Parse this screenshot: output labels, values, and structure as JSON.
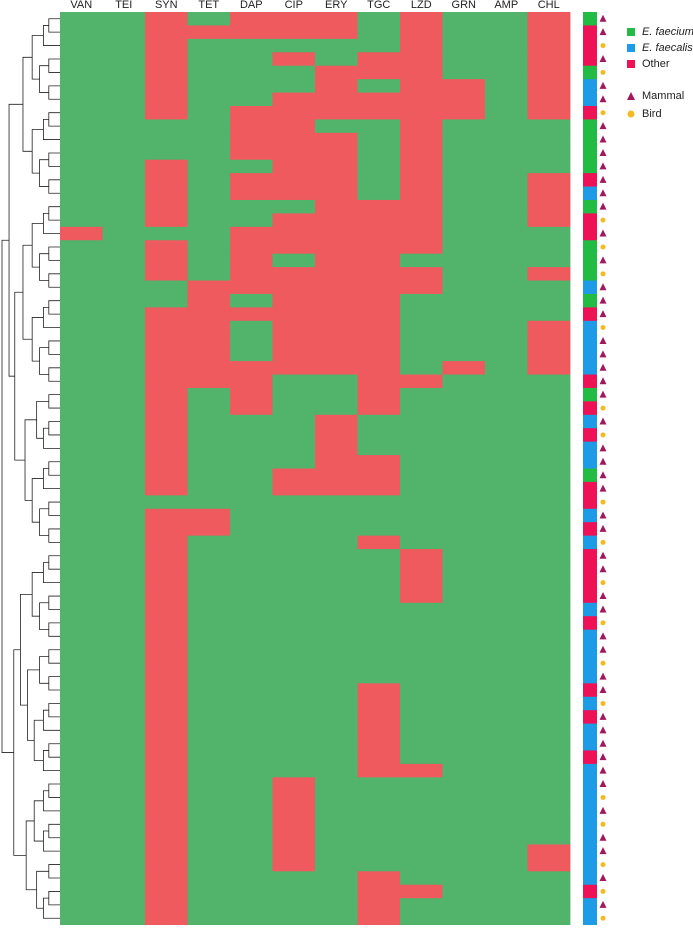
{
  "chart_data": {
    "type": "heatmap",
    "columns": [
      "VAN",
      "TEI",
      "SYN",
      "TET",
      "DAP",
      "CIP",
      "ERY",
      "TGC",
      "LZD",
      "GRN",
      "AMP",
      "CHL"
    ],
    "cell_colors": [
      "#52b36a",
      "#ef5a5f"
    ],
    "matrix": [
      [
        0,
        0,
        1,
        0,
        1,
        1,
        1,
        0,
        1,
        0,
        0,
        1
      ],
      [
        0,
        0,
        1,
        1,
        1,
        1,
        1,
        0,
        1,
        0,
        0,
        1
      ],
      [
        0,
        0,
        1,
        0,
        0,
        0,
        0,
        0,
        1,
        0,
        0,
        1
      ],
      [
        0,
        0,
        1,
        0,
        0,
        1,
        0,
        1,
        1,
        0,
        0,
        1
      ],
      [
        0,
        0,
        1,
        0,
        0,
        0,
        1,
        1,
        1,
        0,
        0,
        1
      ],
      [
        0,
        0,
        1,
        0,
        0,
        0,
        1,
        0,
        1,
        1,
        0,
        1
      ],
      [
        0,
        0,
        1,
        0,
        0,
        1,
        1,
        1,
        1,
        1,
        0,
        1
      ],
      [
        0,
        0,
        1,
        0,
        1,
        1,
        1,
        1,
        1,
        1,
        0,
        1
      ],
      [
        0,
        0,
        0,
        0,
        1,
        1,
        0,
        0,
        1,
        0,
        0,
        0
      ],
      [
        0,
        0,
        0,
        0,
        1,
        1,
        1,
        0,
        1,
        0,
        0,
        0
      ],
      [
        0,
        0,
        0,
        0,
        1,
        1,
        1,
        0,
        1,
        0,
        0,
        0
      ],
      [
        0,
        0,
        1,
        0,
        0,
        1,
        1,
        0,
        1,
        0,
        0,
        0
      ],
      [
        0,
        0,
        1,
        0,
        1,
        1,
        1,
        0,
        1,
        0,
        0,
        1
      ],
      [
        0,
        0,
        1,
        0,
        1,
        1,
        1,
        0,
        1,
        0,
        0,
        1
      ],
      [
        0,
        0,
        1,
        0,
        0,
        0,
        1,
        1,
        1,
        0,
        0,
        1
      ],
      [
        0,
        0,
        1,
        0,
        0,
        1,
        1,
        1,
        1,
        0,
        0,
        1
      ],
      [
        1,
        0,
        0,
        0,
        1,
        1,
        1,
        1,
        1,
        0,
        0,
        0
      ],
      [
        0,
        0,
        1,
        0,
        1,
        1,
        1,
        1,
        1,
        0,
        0,
        0
      ],
      [
        0,
        0,
        1,
        0,
        1,
        0,
        1,
        1,
        0,
        0,
        0,
        0
      ],
      [
        0,
        0,
        1,
        0,
        1,
        1,
        1,
        1,
        1,
        0,
        0,
        1
      ],
      [
        0,
        0,
        0,
        1,
        1,
        1,
        1,
        1,
        1,
        0,
        0,
        0
      ],
      [
        0,
        0,
        0,
        1,
        0,
        1,
        1,
        1,
        0,
        0,
        0,
        0
      ],
      [
        0,
        0,
        1,
        1,
        1,
        1,
        1,
        1,
        0,
        0,
        0,
        0
      ],
      [
        0,
        0,
        1,
        1,
        0,
        1,
        1,
        1,
        0,
        0,
        0,
        1
      ],
      [
        0,
        0,
        1,
        1,
        0,
        1,
        1,
        1,
        0,
        0,
        0,
        1
      ],
      [
        0,
        0,
        1,
        1,
        0,
        1,
        1,
        1,
        0,
        0,
        0,
        1
      ],
      [
        0,
        0,
        1,
        1,
        1,
        1,
        1,
        1,
        0,
        1,
        0,
        1
      ],
      [
        0,
        0,
        1,
        1,
        1,
        0,
        0,
        1,
        1,
        0,
        0,
        0
      ],
      [
        0,
        0,
        1,
        0,
        1,
        0,
        0,
        1,
        0,
        0,
        0,
        0
      ],
      [
        0,
        0,
        1,
        0,
        1,
        0,
        0,
        1,
        0,
        0,
        0,
        0
      ],
      [
        0,
        0,
        1,
        0,
        0,
        0,
        1,
        0,
        0,
        0,
        0,
        0
      ],
      [
        0,
        0,
        1,
        0,
        0,
        0,
        1,
        0,
        0,
        0,
        0,
        0
      ],
      [
        0,
        0,
        1,
        0,
        0,
        0,
        1,
        0,
        0,
        0,
        0,
        0
      ],
      [
        0,
        0,
        1,
        0,
        0,
        0,
        1,
        1,
        0,
        0,
        0,
        0
      ],
      [
        0,
        0,
        1,
        0,
        0,
        1,
        1,
        1,
        0,
        0,
        0,
        0
      ],
      [
        0,
        0,
        1,
        0,
        0,
        1,
        1,
        1,
        0,
        0,
        0,
        0
      ],
      [
        0,
        0,
        0,
        0,
        0,
        0,
        0,
        0,
        0,
        0,
        0,
        0
      ],
      [
        0,
        0,
        1,
        1,
        0,
        0,
        0,
        0,
        0,
        0,
        0,
        0
      ],
      [
        0,
        0,
        1,
        1,
        0,
        0,
        0,
        0,
        0,
        0,
        0,
        0
      ],
      [
        0,
        0,
        1,
        0,
        0,
        0,
        0,
        1,
        0,
        0,
        0,
        0
      ],
      [
        0,
        0,
        1,
        0,
        0,
        0,
        0,
        0,
        1,
        0,
        0,
        0
      ],
      [
        0,
        0,
        1,
        0,
        0,
        0,
        0,
        0,
        1,
        0,
        0,
        0
      ],
      [
        0,
        0,
        1,
        0,
        0,
        0,
        0,
        0,
        1,
        0,
        0,
        0
      ],
      [
        0,
        0,
        1,
        0,
        0,
        0,
        0,
        0,
        1,
        0,
        0,
        0
      ],
      [
        0,
        0,
        1,
        0,
        0,
        0,
        0,
        0,
        0,
        0,
        0,
        0
      ],
      [
        0,
        0,
        1,
        0,
        0,
        0,
        0,
        0,
        0,
        0,
        0,
        0
      ],
      [
        0,
        0,
        1,
        0,
        0,
        0,
        0,
        0,
        0,
        0,
        0,
        0
      ],
      [
        0,
        0,
        1,
        0,
        0,
        0,
        0,
        0,
        0,
        0,
        0,
        0
      ],
      [
        0,
        0,
        1,
        0,
        0,
        0,
        0,
        0,
        0,
        0,
        0,
        0
      ],
      [
        0,
        0,
        1,
        0,
        0,
        0,
        0,
        0,
        0,
        0,
        0,
        0
      ],
      [
        0,
        0,
        1,
        0,
        0,
        0,
        0,
        1,
        0,
        0,
        0,
        0
      ],
      [
        0,
        0,
        1,
        0,
        0,
        0,
        0,
        1,
        0,
        0,
        0,
        0
      ],
      [
        0,
        0,
        1,
        0,
        0,
        0,
        0,
        1,
        0,
        0,
        0,
        0
      ],
      [
        0,
        0,
        1,
        0,
        0,
        0,
        0,
        1,
        0,
        0,
        0,
        0
      ],
      [
        0,
        0,
        1,
        0,
        0,
        0,
        0,
        1,
        0,
        0,
        0,
        0
      ],
      [
        0,
        0,
        1,
        0,
        0,
        0,
        0,
        1,
        0,
        0,
        0,
        0
      ],
      [
        0,
        0,
        1,
        0,
        0,
        0,
        0,
        1,
        1,
        0,
        0,
        0
      ],
      [
        0,
        0,
        1,
        0,
        0,
        1,
        0,
        0,
        0,
        0,
        0,
        0
      ],
      [
        0,
        0,
        1,
        0,
        0,
        1,
        0,
        0,
        0,
        0,
        0,
        0
      ],
      [
        0,
        0,
        1,
        0,
        0,
        1,
        0,
        0,
        0,
        0,
        0,
        0
      ],
      [
        0,
        0,
        1,
        0,
        0,
        1,
        0,
        0,
        0,
        0,
        0,
        0
      ],
      [
        0,
        0,
        1,
        0,
        0,
        1,
        0,
        0,
        0,
        0,
        0,
        0
      ],
      [
        0,
        0,
        1,
        0,
        0,
        1,
        0,
        0,
        0,
        0,
        0,
        1
      ],
      [
        0,
        0,
        1,
        0,
        0,
        1,
        0,
        0,
        0,
        0,
        0,
        1
      ],
      [
        0,
        0,
        1,
        0,
        0,
        0,
        0,
        1,
        0,
        0,
        0,
        0
      ],
      [
        0,
        0,
        1,
        0,
        0,
        0,
        0,
        1,
        1,
        0,
        0,
        0
      ],
      [
        0,
        0,
        1,
        0,
        0,
        0,
        0,
        1,
        0,
        0,
        0,
        0
      ],
      [
        0,
        0,
        1,
        0,
        0,
        0,
        0,
        1,
        0,
        0,
        0,
        0
      ]
    ],
    "species_legend": [
      {
        "name": "E. faecium",
        "color": "#22bb44"
      },
      {
        "name": "E. faecalis",
        "color": "#1e9be6"
      },
      {
        "name": "Other",
        "color": "#ee1155"
      }
    ],
    "species": [
      0,
      2,
      2,
      2,
      0,
      1,
      1,
      2,
      0,
      0,
      0,
      0,
      2,
      1,
      0,
      2,
      2,
      0,
      0,
      0,
      1,
      0,
      2,
      1,
      1,
      1,
      1,
      2,
      0,
      2,
      1,
      2,
      1,
      1,
      0,
      2,
      2,
      1,
      2,
      1,
      2,
      2,
      2,
      2,
      1,
      2,
      1,
      1,
      1,
      1,
      2,
      1,
      2,
      1,
      1,
      2,
      1,
      1,
      1,
      1,
      1,
      1,
      1,
      1,
      1,
      2,
      1,
      1
    ],
    "host_legend": [
      {
        "name": "Mammal",
        "color": "#a0185e"
      },
      {
        "name": "Bird",
        "color": "#f5b921"
      }
    ],
    "host": [
      0,
      0,
      1,
      0,
      1,
      0,
      0,
      1,
      0,
      0,
      0,
      0,
      0,
      0,
      0,
      1,
      0,
      1,
      0,
      1,
      0,
      0,
      0,
      1,
      0,
      0,
      0,
      0,
      0,
      1,
      0,
      1,
      0,
      0,
      0,
      0,
      1,
      0,
      0,
      1,
      0,
      0,
      1,
      0,
      0,
      1,
      0,
      0,
      1,
      0,
      0,
      1,
      0,
      0,
      0,
      0,
      0,
      0,
      1,
      0,
      1,
      0,
      0,
      1,
      0,
      1,
      0,
      1
    ]
  }
}
